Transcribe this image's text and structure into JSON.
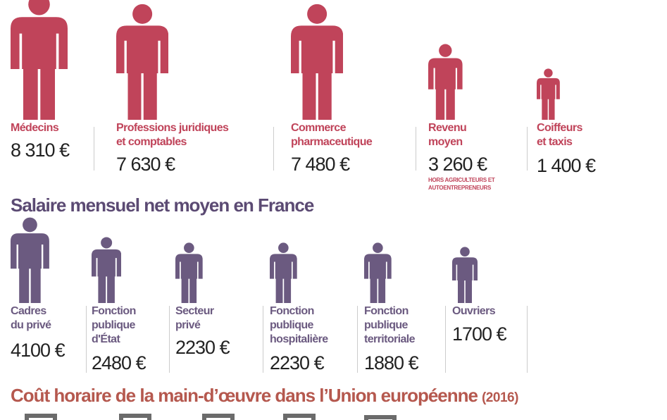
{
  "sections": [
    {
      "items": [
        {
          "label": [
            "Médecins"
          ],
          "value": "8 310 €"
        },
        {
          "label": [
            "Professions juridiques",
            "et comptables"
          ],
          "value": "7 630 €"
        },
        {
          "label": [
            "Commerce",
            "pharmaceutique"
          ],
          "value": "7 480 €"
        },
        {
          "label": [
            "Revenu",
            "moyen"
          ],
          "value": "3 260 €",
          "note": [
            "HORS AGRICULTEURS ET",
            "AUTOENTREPRENEURS"
          ]
        },
        {
          "label": [
            "Coiffeurs",
            "et taxis"
          ],
          "value": "1 400 €"
        }
      ]
    },
    {
      "title": "Salaire mensuel net moyen en France",
      "items": [
        {
          "label": [
            "Cadres",
            "du privé"
          ],
          "value": "4100 €"
        },
        {
          "label": [
            "Fonction",
            "publique",
            "d'État"
          ],
          "value": "2480 €"
        },
        {
          "label": [
            "Secteur",
            "privé"
          ],
          "value": "2230 €"
        },
        {
          "label": [
            "Fonction",
            "publique",
            "hospitalière"
          ],
          "value": "2230 €"
        },
        {
          "label": [
            "Fonction",
            "publique",
            "territoriale"
          ],
          "value": "1880 €"
        },
        {
          "label": [
            "Ouvriers"
          ],
          "value": "1700 €"
        }
      ]
    }
  ],
  "footer_title": {
    "text": "Coût horaire de la main-d’œuvre dans l’Union européenne",
    "suffix": "(2016)"
  }
}
